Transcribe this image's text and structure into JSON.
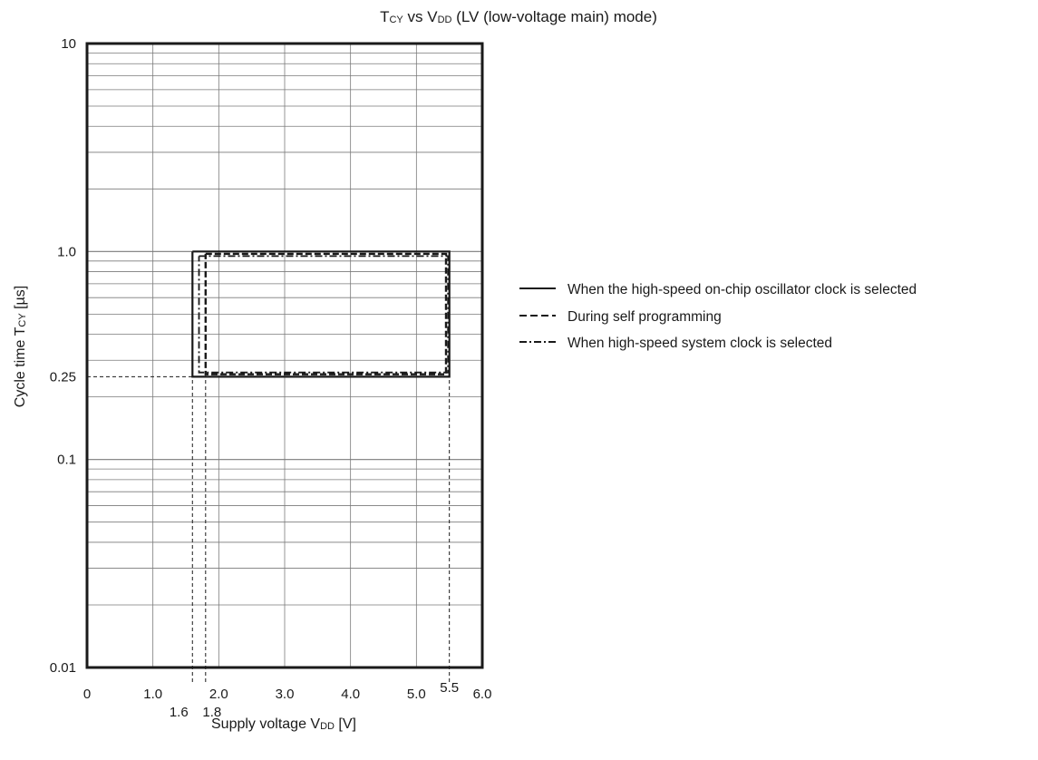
{
  "chart_data": {
    "type": "line",
    "title": {
      "main": "T",
      "main_sub": "CY",
      "vs": " vs V",
      "vs_sub": "DD",
      "rest": " (LV (low-voltage main) mode)"
    },
    "xlabel": {
      "main": "Supply voltage V",
      "sub": "DD",
      "unit": " [V]"
    },
    "ylabel": {
      "main": "Cycle time T",
      "sub": "CY",
      "unit": " [µs]"
    },
    "x_scale": "linear",
    "y_scale": "log",
    "xlim": [
      0,
      6.0
    ],
    "ylim": [
      0.01,
      10
    ],
    "grid": true,
    "x_ticks": [
      {
        "value": 0,
        "label": "0"
      },
      {
        "value": 1.0,
        "label": "1.0"
      },
      {
        "value": 2.0,
        "label": "2.0"
      },
      {
        "value": 3.0,
        "label": "3.0"
      },
      {
        "value": 4.0,
        "label": "4.0"
      },
      {
        "value": 5.0,
        "label": "5.0"
      },
      {
        "value": 6.0,
        "label": "6.0"
      }
    ],
    "x_special_ticks": [
      {
        "value": 1.6,
        "label": "1.6"
      },
      {
        "value": 1.8,
        "label": "1.8"
      },
      {
        "value": 5.5,
        "label": "5.5"
      }
    ],
    "y_ticks": [
      {
        "value": 10,
        "label": "10"
      },
      {
        "value": 1.0,
        "label": "1.0"
      },
      {
        "value": 0.25,
        "label": "0.25"
      },
      {
        "value": 0.1,
        "label": "0.1"
      },
      {
        "value": 0.01,
        "label": "0.01"
      }
    ],
    "series": [
      {
        "name": "When the high-speed on-chip oscillator clock is selected",
        "style": "solid",
        "x": [
          1.6,
          5.5,
          5.5,
          1.6,
          1.6
        ],
        "y": [
          1.0,
          1.0,
          0.25,
          0.25,
          1.0
        ]
      },
      {
        "name": "During self programming",
        "style": "dashed",
        "x": [
          1.8,
          5.45,
          5.45,
          1.8,
          1.8
        ],
        "y": [
          0.975,
          0.975,
          0.257,
          0.257,
          0.975
        ]
      },
      {
        "name": "When high-speed system clock is selected",
        "style": "dashdot",
        "x": [
          1.7,
          5.48,
          5.48,
          1.7,
          1.7
        ],
        "y": [
          0.95,
          0.95,
          0.262,
          0.262,
          0.95
        ]
      }
    ],
    "reference_lines": [
      {
        "orientation": "horizontal",
        "value": 0.25,
        "from": 0,
        "to": 1.6
      },
      {
        "orientation": "vertical",
        "value": 1.6,
        "from": 0.01,
        "to": 0.25
      },
      {
        "orientation": "vertical",
        "value": 1.8,
        "from": 0.01,
        "to": 0.257
      },
      {
        "orientation": "vertical",
        "value": 5.5,
        "from": 0.01,
        "to": 0.25
      }
    ],
    "legend_position": "right",
    "colors": {
      "line": "#1a1a1a",
      "grid": "#7a7a7a",
      "frame": "#1a1a1a",
      "background": "#ffffff"
    }
  }
}
